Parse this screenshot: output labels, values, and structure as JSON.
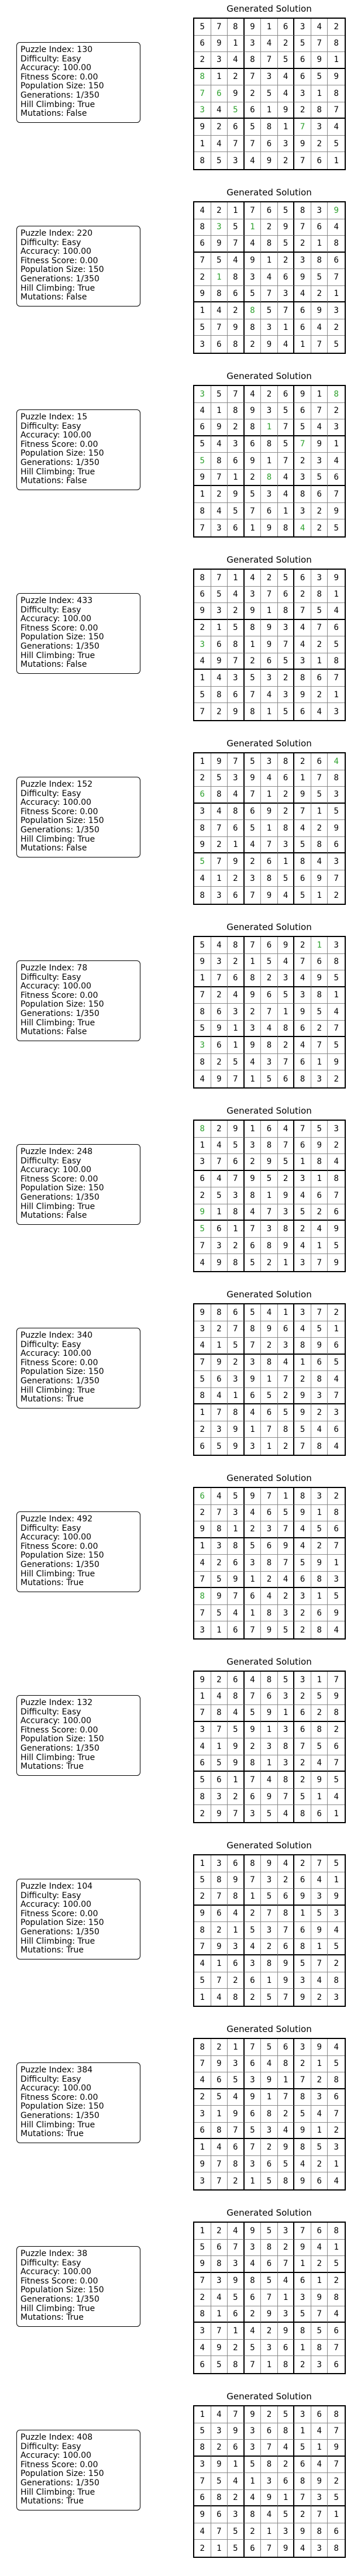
{
  "colors": {
    "given": "#000000",
    "generated": "#2ca02c"
  },
  "panels": [
    {
      "info": [
        "Puzzle Index: 130",
        "Difficulty: Easy",
        "Accuracy: 100.00",
        "Fitness Score: 0.00",
        "Population Size: 150",
        "Generations: 1/350",
        "Hill Climbing: True",
        "Mutations: False"
      ],
      "title": "Generated Solution",
      "grid": [
        "578916342",
        "691342578",
        "234875691",
        "812734659",
        "769254318",
        "345619287",
        "926581734",
        "147763925",
        "853492761"
      ],
      "mask": [
        "111111111",
        "111111111",
        "111111111",
        "011111111",
        "001111111",
        "010111111",
        "111111011",
        "111111111",
        "111111111"
      ]
    },
    {
      "info": [
        "Puzzle Index: 220",
        "Difficulty: Easy",
        "Accuracy: 100.00",
        "Fitness Score: 0.00",
        "Population Size: 150",
        "Generations: 1/350",
        "Hill Climbing: True",
        "Mutations: False"
      ],
      "title": "Generated Solution",
      "grid": [
        "421765839",
        "835129764",
        "697485218",
        "754912386",
        "218346957",
        "986573421",
        "142857693",
        "579831642",
        "368294175"
      ],
      "mask": [
        "111111110",
        "101011111",
        "111111111",
        "111111111",
        "101111111",
        "111111111",
        "111011111",
        "111111111",
        "111111111"
      ]
    },
    {
      "info": [
        "Puzzle Index: 15",
        "Difficulty: Easy",
        "Accuracy: 100.00",
        "Fitness Score: 0.00",
        "Population Size: 150",
        "Generations: 1/350",
        "Hill Climbing: True",
        "Mutations: False"
      ],
      "title": "Generated Solution",
      "grid": [
        "357426918",
        "418935672",
        "692817543",
        "543685791",
        "586917234",
        "971284356",
        "129534867",
        "845761329",
        "736198425"
      ],
      "mask": [
        "011111110",
        "111111111",
        "111101111",
        "111111011",
        "011111111",
        "111101111",
        "111111111",
        "111111111",
        "111111011"
      ]
    },
    {
      "info": [
        "Puzzle Index: 433",
        "Difficulty: Easy",
        "Accuracy: 100.00",
        "Fitness Score: 0.00",
        "Population Size: 150",
        "Generations: 1/350",
        "Hill Climbing: True",
        "Mutations: False"
      ],
      "title": "Generated Solution",
      "grid": [
        "871425639",
        "654376281",
        "932918754",
        "215893476",
        "368197425",
        "497265318",
        "143532867",
        "586743921",
        "729815643"
      ],
      "mask": [
        "111111111",
        "111111111",
        "111111111",
        "111111111",
        "011111111",
        "111111111",
        "111111111",
        "111111111",
        "111111111"
      ]
    },
    {
      "info": [
        "Puzzle Index: 152",
        "Difficulty: Easy",
        "Accuracy: 100.00",
        "Fitness Score: 0.00",
        "Population Size: 150",
        "Generations: 1/350",
        "Hill Climbing: True",
        "Mutations: False"
      ],
      "title": "Generated Solution",
      "grid": [
        "197538264",
        "253946178",
        "684712953",
        "348692715",
        "876518429",
        "921473586",
        "579261843",
        "412385697",
        "836794512"
      ],
      "mask": [
        "111111110",
        "111111111",
        "011111111",
        "111111111",
        "111111111",
        "111111111",
        "011111111",
        "111111111",
        "111111111"
      ]
    },
    {
      "info": [
        "Puzzle Index: 78",
        "Difficulty: Easy",
        "Accuracy: 100.00",
        "Fitness Score: 0.00",
        "Population Size: 150",
        "Generations: 1/350",
        "Hill Climbing: True",
        "Mutations: False"
      ],
      "title": "Generated Solution",
      "grid": [
        "548769213",
        "932154768",
        "176823495",
        "724965381",
        "863271954",
        "591348627",
        "361982475",
        "825437619",
        "497156832"
      ],
      "mask": [
        "111111101",
        "111111111",
        "111111111",
        "111111111",
        "111111111",
        "111111111",
        "011111111",
        "111111111",
        "111111111"
      ]
    },
    {
      "info": [
        "Puzzle Index: 248",
        "Difficulty: Easy",
        "Accuracy: 100.00",
        "Fitness Score: 0.00",
        "Population Size: 150",
        "Generations: 1/350",
        "Hill Climbing: True",
        "Mutations: False"
      ],
      "title": "Generated Solution",
      "grid": [
        "829164753",
        "145387692",
        "376295184",
        "647952318",
        "253819467",
        "918473526",
        "561738249",
        "732689415",
        "498521379"
      ],
      "mask": [
        "011111111",
        "111111111",
        "111111111",
        "111111111",
        "111111111",
        "011111111",
        "011111111",
        "111111111",
        "111111111"
      ]
    },
    {
      "info": [
        "Puzzle Index: 340",
        "Difficulty: Easy",
        "Accuracy: 100.00",
        "Fitness Score: 0.00",
        "Population Size: 150",
        "Generations: 1/350",
        "Hill Climbing: True",
        "Mutations: True"
      ],
      "title": "Generated Solution",
      "grid": [
        "986541372",
        "327896451",
        "415723896",
        "792384165",
        "563917284",
        "841652937",
        "178465923",
        "239178546",
        "659312784"
      ],
      "mask": [
        "111111111",
        "111111111",
        "111111111",
        "111111111",
        "111111111",
        "111111111",
        "111111111",
        "111111111",
        "111111111"
      ]
    },
    {
      "info": [
        "Puzzle Index: 492",
        "Difficulty: Easy",
        "Accuracy: 100.00",
        "Fitness Score: 0.00",
        "Population Size: 150",
        "Generations: 1/350",
        "Hill Climbing: True",
        "Mutations: True"
      ],
      "title": "Generated Solution",
      "grid": [
        "645971832",
        "273465918",
        "981237456",
        "138569427",
        "426387591",
        "759124683",
        "897642315",
        "754183269",
        "316795284"
      ],
      "mask": [
        "011111111",
        "111111111",
        "111111111",
        "111111111",
        "111111111",
        "111111111",
        "011111111",
        "111111111",
        "111111111"
      ]
    },
    {
      "info": [
        "Puzzle Index: 132",
        "Difficulty: Easy",
        "Accuracy: 100.00",
        "Fitness Score: 0.00",
        "Population Size: 150",
        "Generations: 1/350",
        "Hill Climbing: True",
        "Mutations: True"
      ],
      "title": "Generated Solution",
      "grid": [
        "926485317",
        "148763259",
        "784591628",
        "375913682",
        "419238756",
        "659813247",
        "561748295",
        "832697514",
        "297354861"
      ],
      "mask": [
        "111111111",
        "111111111",
        "111111111",
        "111111111",
        "111111111",
        "111111111",
        "111111111",
        "111111111",
        "111111111"
      ]
    },
    {
      "info": [
        "Puzzle Index: 104",
        "Difficulty: Easy",
        "Accuracy: 100.00",
        "Fitness Score: 0.00",
        "Population Size: 150",
        "Generations: 1/350",
        "Hill Climbing: True",
        "Mutations: True"
      ],
      "title": "Generated Solution",
      "grid": [
        "136894275",
        "589732641",
        "278156939",
        "964278153",
        "821537694",
        "793426815",
        "416389572",
        "572619348",
        "148257923"
      ],
      "mask": [
        "111111111",
        "111111111",
        "111111111",
        "111111111",
        "111111111",
        "111111111",
        "111111111",
        "111111111",
        "111111111"
      ]
    },
    {
      "info": [
        "Puzzle Index: 384",
        "Difficulty: Easy",
        "Accuracy: 100.00",
        "Fitness Score: 0.00",
        "Population Size: 150",
        "Generations: 1/350",
        "Hill Climbing: True",
        "Mutations: True"
      ],
      "title": "Generated Solution",
      "grid": [
        "821756394",
        "793648215",
        "465391728",
        "254917836",
        "319682547",
        "687534912",
        "146729853",
        "978365421",
        "372158964"
      ],
      "mask": [
        "111111111",
        "111111111",
        "111111111",
        "111111111",
        "111111111",
        "111111111",
        "111111111",
        "111111111",
        "111111111"
      ]
    },
    {
      "info": [
        "Puzzle Index: 38",
        "Difficulty: Easy",
        "Accuracy: 100.00",
        "Fitness Score: 0.00",
        "Population Size: 150",
        "Generations: 1/350",
        "Hill Climbing: True",
        "Mutations: True"
      ],
      "title": "Generated Solution",
      "grid": [
        "124953768",
        "567382941",
        "983467125",
        "739854612",
        "245671398",
        "816293574",
        "371429856",
        "492536187",
        "658718236"
      ],
      "mask": [
        "111111111",
        "111111111",
        "111111111",
        "111111111",
        "111111111",
        "111111111",
        "111111111",
        "111111111",
        "111111111"
      ]
    },
    {
      "info": [
        "Puzzle Index: 408",
        "Difficulty: Easy",
        "Accuracy: 100.00",
        "Fitness Score: 0.00",
        "Population Size: 150",
        "Generations: 1/350",
        "Hill Climbing: True",
        "Mutations: True"
      ],
      "title": "Generated Solution",
      "grid": [
        "147925368",
        "539368147",
        "826374519",
        "391582647",
        "754136892",
        "682491735",
        "963845271",
        "475213986",
        "215679438"
      ],
      "mask": [
        "111111111",
        "111111111",
        "111111111",
        "111111111",
        "111111111",
        "111111111",
        "111111111",
        "111111111",
        "111111111"
      ]
    }
  ]
}
